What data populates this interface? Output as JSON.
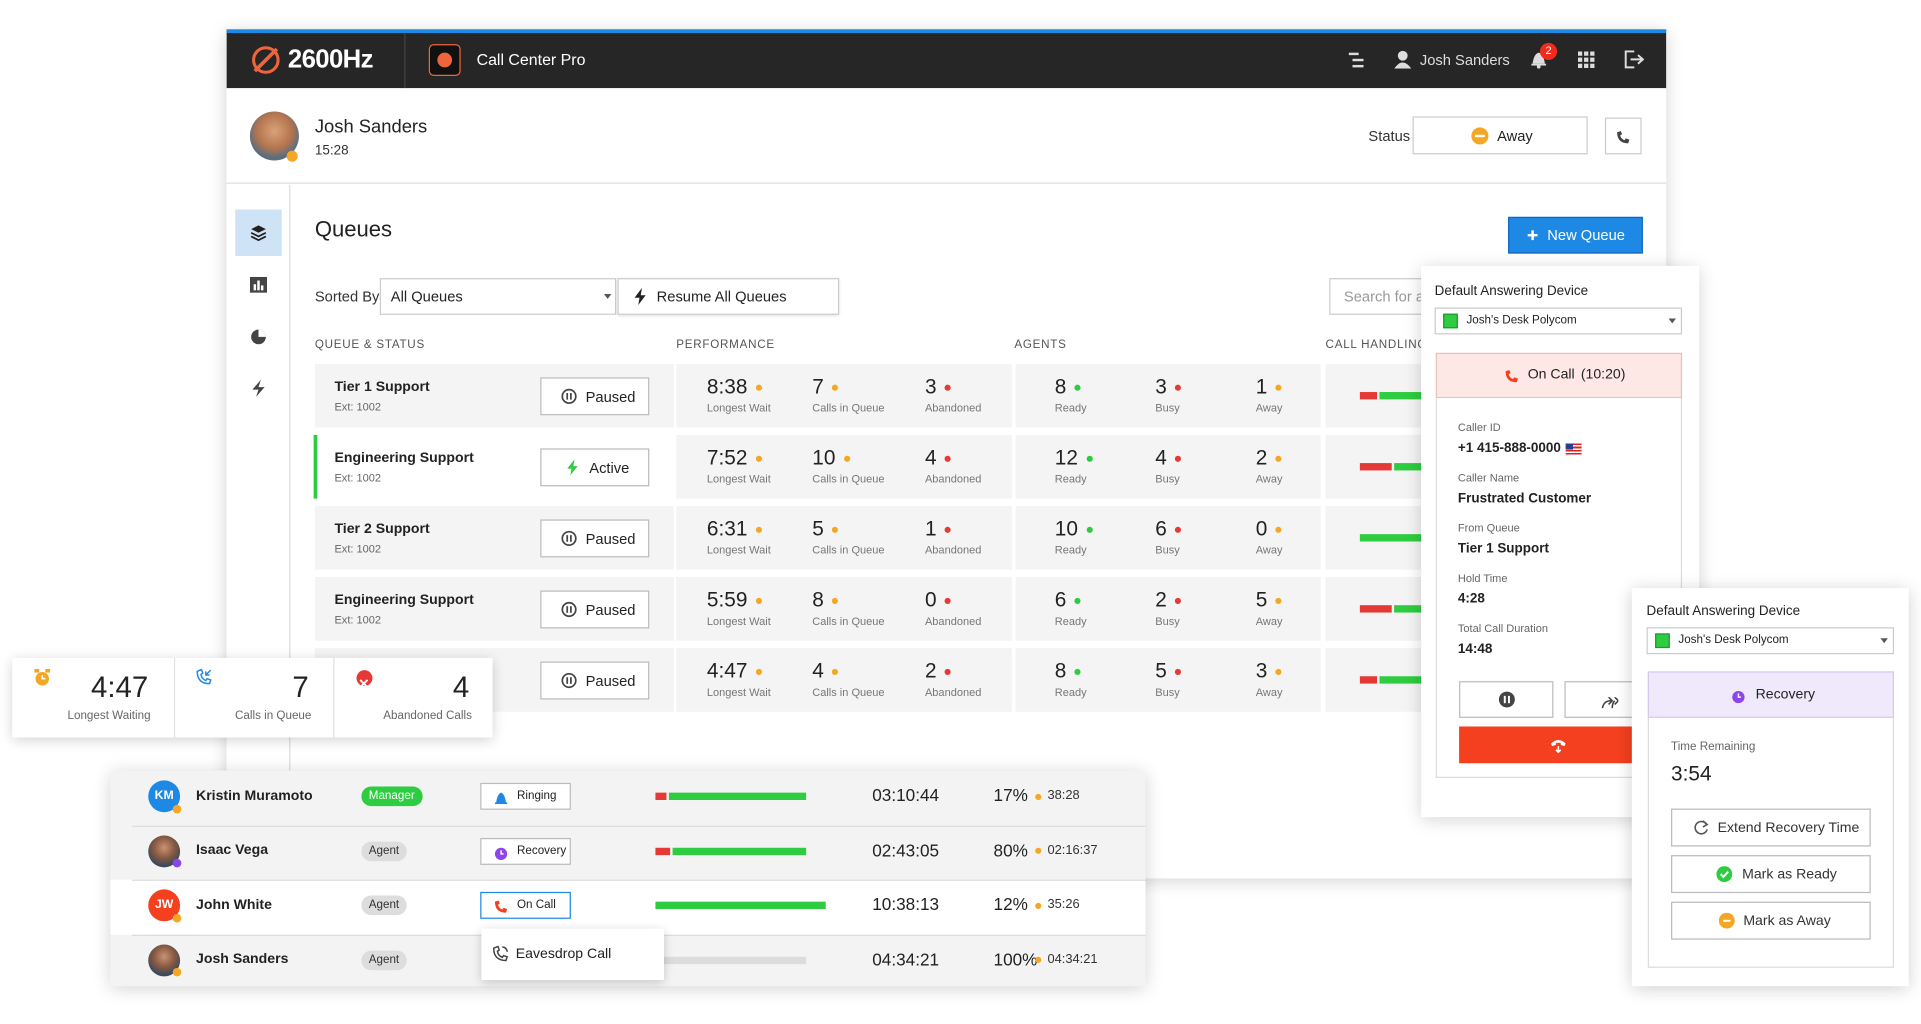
{
  "header": {
    "brand": "2600Hz",
    "app": "Call Center Pro",
    "user": "Josh Sanders",
    "notifications": 2
  },
  "profile": {
    "name": "Josh Sanders",
    "time": "15:28",
    "status_label": "Status",
    "status": "Away"
  },
  "queues": {
    "title": "Queues",
    "new_button": "New Queue",
    "sort_label": "Sorted By",
    "filter": "All Queues",
    "resume": "Resume All Queues",
    "search": "Search for a c",
    "columns": [
      "QUEUE & STATUS",
      "PERFORMANCE",
      "AGENTS",
      "CALL HANDLING"
    ],
    "metric_labels": [
      "Longest Wait",
      "Calls in Queue",
      "Abandoned",
      "Ready",
      "Busy",
      "Away"
    ],
    "rows": [
      {
        "name": "Tier 1 Support",
        "ext": "Ext: 1002",
        "state": "Paused",
        "wait": "8:38",
        "calls": 7,
        "abandoned": 3,
        "ready": 8,
        "busy": 3,
        "away": 1
      },
      {
        "name": "Engineering Support",
        "ext": "Ext: 1002",
        "state": "Active",
        "wait": "7:52",
        "calls": 10,
        "abandoned": 4,
        "ready": 12,
        "busy": 4,
        "away": 2
      },
      {
        "name": "Tier 2 Support",
        "ext": "Ext: 1002",
        "state": "Paused",
        "wait": "6:31",
        "calls": 5,
        "abandoned": 1,
        "ready": 10,
        "busy": 6,
        "away": 0
      },
      {
        "name": "Engineering Support",
        "ext": "Ext: 1002",
        "state": "Paused",
        "wait": "5:59",
        "calls": 8,
        "abandoned": 0,
        "ready": 6,
        "busy": 2,
        "away": 5
      },
      {
        "state": "Paused",
        "wait": "4:47",
        "calls": 4,
        "abandoned": 2,
        "ready": 8,
        "busy": 5,
        "away": 3
      }
    ]
  },
  "summary": [
    {
      "value": "4:47",
      "label": "Longest Waiting"
    },
    {
      "value": 7,
      "label": "Calls in Queue"
    },
    {
      "value": 4,
      "label": "Abandoned Calls"
    }
  ],
  "agents": [
    {
      "initials": "KM",
      "name": "Kristin Muramoto",
      "role": "Manager",
      "state": "Ringing",
      "duration": "03:10:44",
      "percent": "17%",
      "time": "38:28"
    },
    {
      "name": "Isaac Vega",
      "role": "Agent",
      "state": "Recovery",
      "duration": "02:43:05",
      "percent": "80%",
      "time": "02:16:37"
    },
    {
      "initials": "JW",
      "name": "John White",
      "role": "Agent",
      "state": "On Call",
      "duration": "10:38:13",
      "percent": "12%",
      "time": "35:26"
    },
    {
      "name": "Josh Sanders",
      "role": "Agent",
      "duration": "04:34:21",
      "percent": "100%",
      "time": "04:34:21"
    }
  ],
  "agent_menu": {
    "item": "Eavesdrop Call"
  },
  "call_panel": {
    "device_label": "Default Answering Device",
    "device": "Josh's Desk Polycom",
    "status": "On Call",
    "timer": "(10:20)",
    "fields": [
      {
        "label": "Caller ID",
        "value": "+1 415-888-0000"
      },
      {
        "label": "Caller Name",
        "value": "Frustrated Customer"
      },
      {
        "label": "From Queue",
        "value": "Tier 1 Support"
      },
      {
        "label": "Hold Time",
        "value": "4:28"
      },
      {
        "label": "Total Call Duration",
        "value": "14:48"
      }
    ]
  },
  "recovery_panel": {
    "device_label": "Default Answering Device",
    "device": "Josh's Desk Polycom",
    "status": "Recovery",
    "remaining_label": "Time Remaining",
    "remaining": "3:54",
    "buttons": [
      "Extend Recovery Time",
      "Mark as Ready",
      "Mark as Away"
    ]
  }
}
